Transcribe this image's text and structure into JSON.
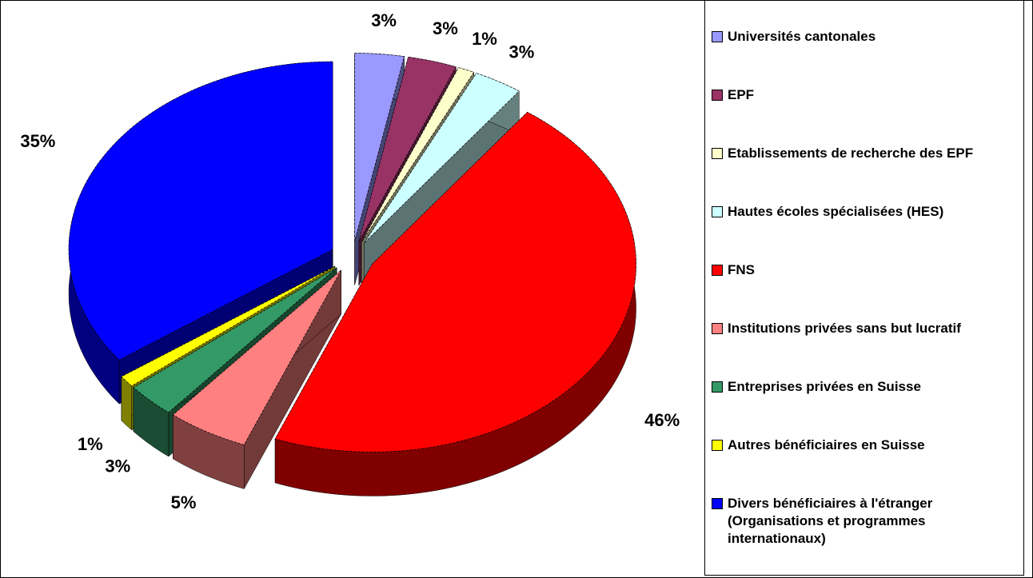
{
  "chart_data": {
    "type": "pie",
    "categories": [
      "Universités cantonales",
      "EPF",
      "Etablissements de recherche des EPF",
      "Hautes écoles spécialisées (HES)",
      "FNS",
      "Institutions privées sans but lucratif",
      "Entreprises privées en Suisse",
      "Autres bénéficiaires en Suisse",
      "Divers bénéficiaires à l'étranger (Organisations et programmes internationaux)"
    ],
    "values": [
      3,
      3,
      1,
      3,
      46,
      5,
      3,
      1,
      35
    ],
    "value_labels": [
      "3%",
      "3%",
      "1%",
      "3%",
      "46%",
      "5%",
      "3%",
      "1%",
      "35%"
    ],
    "colors": [
      "#9999ff",
      "#993366",
      "#ffffcc",
      "#ccffff",
      "#ff0000",
      "#ff8080",
      "#339966",
      "#ffff00",
      "#0000ff"
    ],
    "legend": "right"
  }
}
